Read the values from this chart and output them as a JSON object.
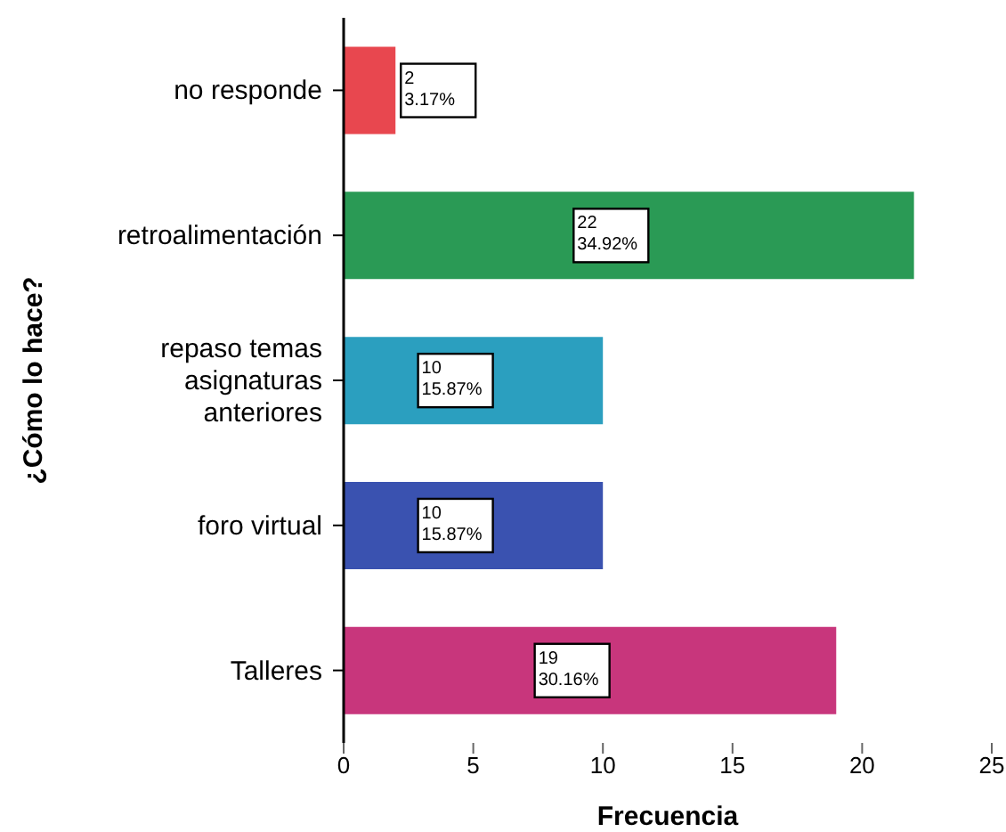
{
  "chart_data": {
    "type": "bar",
    "orientation": "horizontal",
    "xlabel": "Frecuencia",
    "ylabel": "¿Cómo lo hace?",
    "categories": [
      "no responde",
      "retroalimentación",
      "repaso temas asignaturas anteriores",
      "foro virtual",
      "Talleres"
    ],
    "values": [
      2,
      22,
      10,
      10,
      19
    ],
    "colors": [
      "#e8474f",
      "#2a9a55",
      "#2b9fbf",
      "#3a52b0",
      "#c8367c"
    ],
    "value_labels": [
      "2\n3.17%",
      "22\n34.92%",
      "10\n15.87%",
      "10\n15.87%",
      "19\n30.16%"
    ],
    "xlim": [
      0,
      25
    ],
    "xticks": [
      0,
      5,
      10,
      15,
      20,
      25
    ],
    "grid": false
  }
}
